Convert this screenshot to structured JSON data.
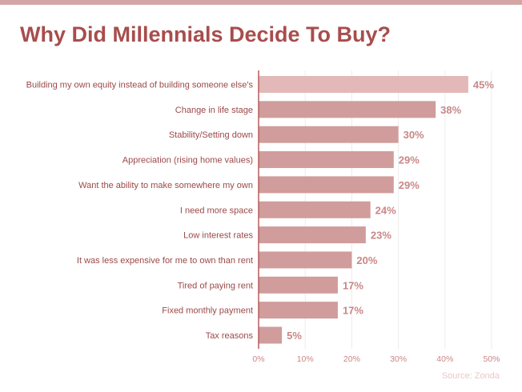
{
  "title": "Why Did Millennials Decide To Buy?",
  "source": "Source: Zonda",
  "colors": {
    "accent_bar": "#d4a5a5",
    "title": "#a84d4d",
    "bar": "#d09c9c",
    "bar_highlight": "#e2b8b8",
    "axis": "#b85c5c",
    "grid": "#ececec"
  },
  "chart_data": {
    "type": "bar",
    "orientation": "horizontal",
    "categories": [
      "Building my own equity instead of building someone else's",
      "Change in life stage",
      "Stability/Setting down",
      "Appreciation (rising home values)",
      "Want the ability to make somewhere my own",
      "I need more space",
      "Low interest rates",
      "It was less expensive for me to own than rent",
      "Tired of paying rent",
      "Fixed monthly payment",
      "Tax reasons"
    ],
    "values": [
      45,
      38,
      30,
      29,
      29,
      24,
      23,
      20,
      17,
      17,
      5
    ],
    "value_labels": [
      "45%",
      "38%",
      "30%",
      "29%",
      "29%",
      "24%",
      "23%",
      "20%",
      "17%",
      "17%",
      "5%"
    ],
    "xlim": [
      0,
      50
    ],
    "xticks": [
      0,
      10,
      20,
      30,
      40,
      50
    ],
    "xtick_labels": [
      "0%",
      "10%",
      "20%",
      "30%",
      "40%",
      "50%"
    ],
    "grid": true,
    "legend": "none"
  }
}
